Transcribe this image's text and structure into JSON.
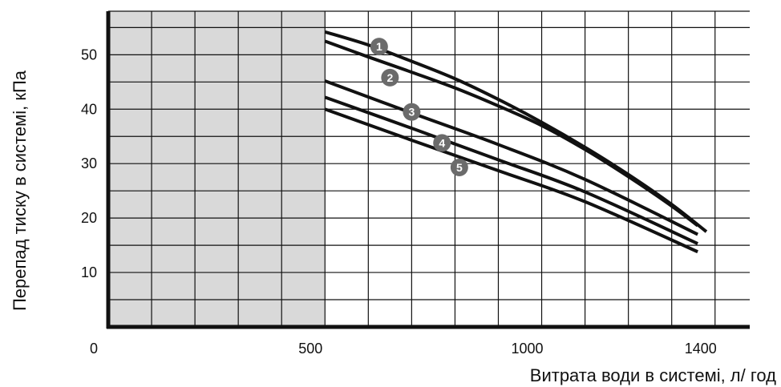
{
  "chart_data": {
    "type": "line",
    "xlabel": "Витрата води в системі, л/ год",
    "ylabel": "Перепад тиску в системі, кПа",
    "xlim": [
      0,
      1480
    ],
    "ylim": [
      0,
      58
    ],
    "x_ticks": [
      "0",
      "500",
      "1000",
      "1400"
    ],
    "y_ticks": [
      "10",
      "20",
      "30",
      "40",
      "50"
    ],
    "x_tick_values": [
      0,
      500,
      1000,
      1400
    ],
    "y_tick_values": [
      10,
      20,
      30,
      40,
      50
    ],
    "grid": true,
    "x_grid_step": 100,
    "y_grid_step": 5,
    "shaded_region": [
      0,
      500
    ],
    "series": [
      {
        "marker": "1",
        "x": [
          500,
          600,
          700,
          800,
          900,
          1000,
          1100,
          1200,
          1300,
          1380
        ],
        "y": [
          54.2,
          51.8,
          48.8,
          45.6,
          41.8,
          37.6,
          33.0,
          28.0,
          22.5,
          17.5
        ]
      },
      {
        "marker": "2",
        "x": [
          500,
          600,
          700,
          800,
          900,
          1000,
          1100,
          1200,
          1300,
          1360
        ],
        "y": [
          52.5,
          49.6,
          46.8,
          43.9,
          40.6,
          37.0,
          32.6,
          27.6,
          22.2,
          18.6
        ]
      },
      {
        "marker": "3",
        "x": [
          500,
          700,
          900,
          1100,
          1360
        ],
        "y": [
          45.2,
          39.3,
          33.5,
          27.1,
          17.0
        ]
      },
      {
        "marker": "4",
        "x": [
          500,
          700,
          900,
          1100,
          1360
        ],
        "y": [
          42.2,
          36.5,
          30.7,
          24.8,
          15.3
        ]
      },
      {
        "marker": "5",
        "x": [
          500,
          700,
          900,
          1100,
          1360
        ],
        "y": [
          40.0,
          34.3,
          28.7,
          23.0,
          13.8
        ]
      }
    ],
    "marker_positions": [
      {
        "label": "1",
        "x": 625,
        "y": 51.5
      },
      {
        "label": "2",
        "x": 650,
        "y": 45.8
      },
      {
        "label": "3",
        "x": 700,
        "y": 39.5
      },
      {
        "label": "4",
        "x": 770,
        "y": 33.8
      },
      {
        "label": "5",
        "x": 810,
        "y": 29.3
      }
    ]
  },
  "colors": {
    "line": "#111111",
    "grid": "#111111",
    "shade": "#d9d9d9",
    "marker": "#6b6b6b"
  }
}
